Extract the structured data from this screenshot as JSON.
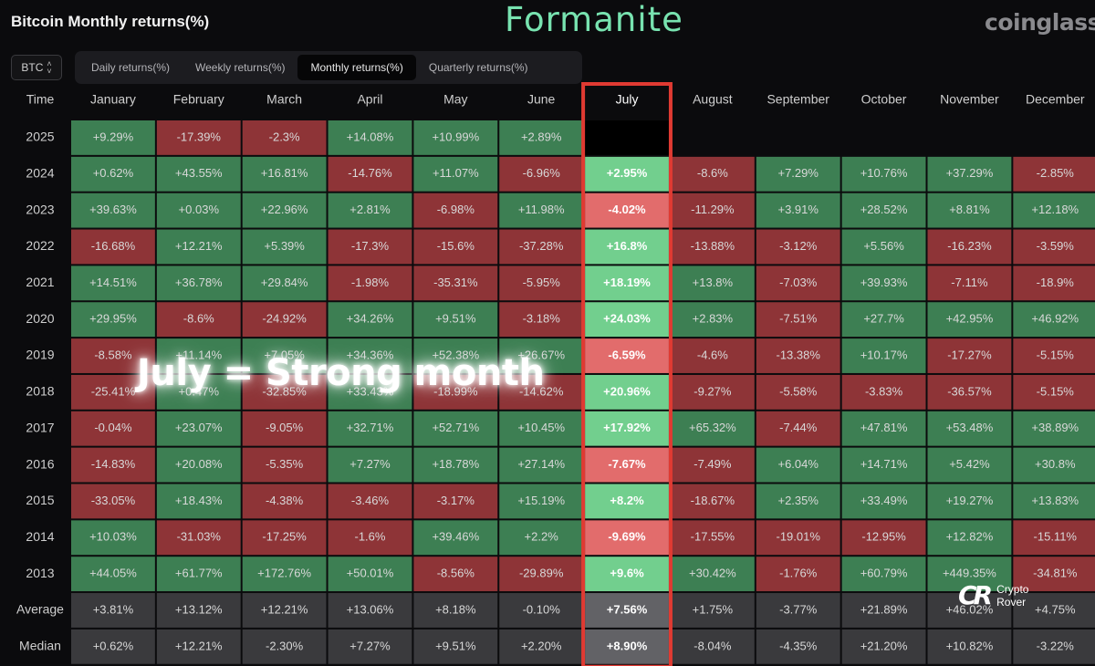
{
  "header": {
    "title": "Bitcoin Monthly returns(%)",
    "watermark": "Formanite",
    "brand": "coinglass"
  },
  "controls": {
    "asset": "BTC",
    "tabs": [
      "Daily returns(%)",
      "Weekly returns(%)",
      "Monthly returns(%)",
      "Quarterly returns(%)"
    ],
    "active_tab": 2
  },
  "overlay": {
    "annotation": "July = Strong month",
    "logo_text_1": "Crypto",
    "logo_text_2": "Rover"
  },
  "colors": {
    "positive": "#3d7f53",
    "negative": "#8e3437",
    "highlight_positive": "#72cf8e",
    "highlight_negative": "#e26c6c",
    "summary": "#3a3a3d",
    "highlight_summary": "#626266",
    "highlight_border": "#e03a32"
  },
  "chart_data": {
    "type": "table",
    "columns": [
      "Time",
      "January",
      "February",
      "March",
      "April",
      "May",
      "June",
      "July",
      "August",
      "September",
      "October",
      "November",
      "December"
    ],
    "highlight_column": "July",
    "rows": [
      {
        "label": "2025",
        "values": [
          "+9.29%",
          "-17.39%",
          "-2.3%",
          "+14.08%",
          "+10.99%",
          "+2.89%",
          "",
          "",
          "",
          "",
          "",
          ""
        ]
      },
      {
        "label": "2024",
        "values": [
          "+0.62%",
          "+43.55%",
          "+16.81%",
          "-14.76%",
          "+11.07%",
          "-6.96%",
          "+2.95%",
          "-8.6%",
          "+7.29%",
          "+10.76%",
          "+37.29%",
          "-2.85%"
        ]
      },
      {
        "label": "2023",
        "values": [
          "+39.63%",
          "+0.03%",
          "+22.96%",
          "+2.81%",
          "-6.98%",
          "+11.98%",
          "-4.02%",
          "-11.29%",
          "+3.91%",
          "+28.52%",
          "+8.81%",
          "+12.18%"
        ]
      },
      {
        "label": "2022",
        "values": [
          "-16.68%",
          "+12.21%",
          "+5.39%",
          "-17.3%",
          "-15.6%",
          "-37.28%",
          "+16.8%",
          "-13.88%",
          "-3.12%",
          "+5.56%",
          "-16.23%",
          "-3.59%"
        ]
      },
      {
        "label": "2021",
        "values": [
          "+14.51%",
          "+36.78%",
          "+29.84%",
          "-1.98%",
          "-35.31%",
          "-5.95%",
          "+18.19%",
          "+13.8%",
          "-7.03%",
          "+39.93%",
          "-7.11%",
          "-18.9%"
        ]
      },
      {
        "label": "2020",
        "values": [
          "+29.95%",
          "-8.6%",
          "-24.92%",
          "+34.26%",
          "+9.51%",
          "-3.18%",
          "+24.03%",
          "+2.83%",
          "-7.51%",
          "+27.7%",
          "+42.95%",
          "+46.92%"
        ]
      },
      {
        "label": "2019",
        "values": [
          "-8.58%",
          "+11.14%",
          "+7.05%",
          "+34.36%",
          "+52.38%",
          "+26.67%",
          "-6.59%",
          "-4.6%",
          "-13.38%",
          "+10.17%",
          "-17.27%",
          "-5.15%"
        ]
      },
      {
        "label": "2018",
        "values": [
          "-25.41%",
          "+0.47%",
          "-32.85%",
          "+33.43%",
          "-18.99%",
          "-14.62%",
          "+20.96%",
          "-9.27%",
          "-5.58%",
          "-3.83%",
          "-36.57%",
          "-5.15%"
        ]
      },
      {
        "label": "2017",
        "values": [
          "-0.04%",
          "+23.07%",
          "-9.05%",
          "+32.71%",
          "+52.71%",
          "+10.45%",
          "+17.92%",
          "+65.32%",
          "-7.44%",
          "+47.81%",
          "+53.48%",
          "+38.89%"
        ]
      },
      {
        "label": "2016",
        "values": [
          "-14.83%",
          "+20.08%",
          "-5.35%",
          "+7.27%",
          "+18.78%",
          "+27.14%",
          "-7.67%",
          "-7.49%",
          "+6.04%",
          "+14.71%",
          "+5.42%",
          "+30.8%"
        ]
      },
      {
        "label": "2015",
        "values": [
          "-33.05%",
          "+18.43%",
          "-4.38%",
          "-3.46%",
          "-3.17%",
          "+15.19%",
          "+8.2%",
          "-18.67%",
          "+2.35%",
          "+33.49%",
          "+19.27%",
          "+13.83%"
        ]
      },
      {
        "label": "2014",
        "values": [
          "+10.03%",
          "-31.03%",
          "-17.25%",
          "-1.6%",
          "+39.46%",
          "+2.2%",
          "-9.69%",
          "-17.55%",
          "-19.01%",
          "-12.95%",
          "+12.82%",
          "-15.11%"
        ]
      },
      {
        "label": "2013",
        "values": [
          "+44.05%",
          "+61.77%",
          "+172.76%",
          "+50.01%",
          "-8.56%",
          "-29.89%",
          "+9.6%",
          "+30.42%",
          "-1.76%",
          "+60.79%",
          "+449.35%",
          "-34.81%"
        ]
      }
    ],
    "summary_rows": [
      {
        "label": "Average",
        "values": [
          "+3.81%",
          "+13.12%",
          "+12.21%",
          "+13.06%",
          "+8.18%",
          "-0.10%",
          "+7.56%",
          "+1.75%",
          "-3.77%",
          "+21.89%",
          "+46.02%",
          "+4.75%"
        ]
      },
      {
        "label": "Median",
        "values": [
          "+0.62%",
          "+12.21%",
          "-2.30%",
          "+7.27%",
          "+9.51%",
          "+2.20%",
          "+8.90%",
          "-8.04%",
          "-4.35%",
          "+21.20%",
          "+10.82%",
          "-3.22%"
        ]
      }
    ]
  }
}
